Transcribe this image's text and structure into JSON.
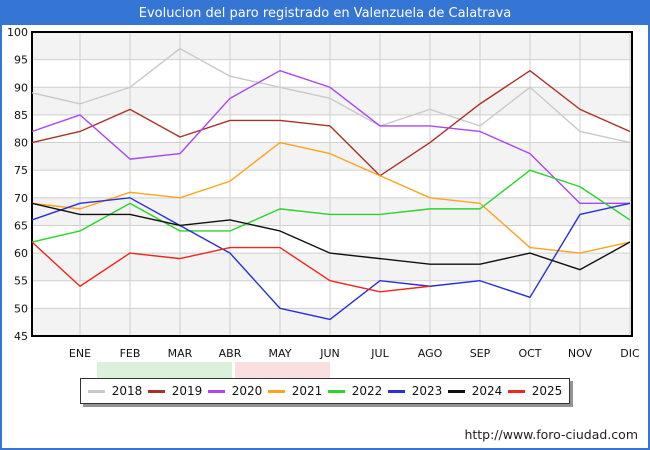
{
  "title": "Evolucion del paro registrado en Valenzuela de Calatrava",
  "footer": {
    "url": "http://www.foro-ciudad.com"
  },
  "colors": {
    "frame_blue": "#3575d3",
    "grid": "#cfcfcf",
    "band": "#f3f3f3",
    "plot_border": "#000000",
    "axis_text": "#111111"
  },
  "chart_data": {
    "type": "line",
    "title": "Evolucion del paro registrado en Valenzuela de Calatrava",
    "xlabel": "",
    "ylabel": "",
    "ylim": [
      45,
      100
    ],
    "ytick_step": 5,
    "grid": true,
    "legend_position": "bottom",
    "months": [
      "ENE",
      "FEB",
      "MAR",
      "ABR",
      "MAY",
      "JUN",
      "JUL",
      "AGO",
      "SEP",
      "OCT",
      "NOV",
      "DIC"
    ],
    "x_layout": {
      "first_point_on_axis": true
    },
    "series": [
      {
        "name": "2018",
        "color": "#c9c9c9",
        "values": [
          89,
          87,
          90,
          97,
          92,
          90,
          88,
          83,
          86,
          83,
          90,
          82,
          80
        ]
      },
      {
        "name": "2019",
        "color": "#a93226",
        "values": [
          80,
          82,
          86,
          81,
          84,
          84,
          83,
          74,
          80,
          87,
          93,
          86,
          82
        ]
      },
      {
        "name": "2020",
        "color": "#aa46f0",
        "values": [
          82,
          85,
          77,
          78,
          88,
          93,
          90,
          83,
          83,
          82,
          78,
          69,
          69
        ]
      },
      {
        "name": "2021",
        "color": "#ffa21f",
        "values": [
          69,
          68,
          71,
          70,
          73,
          80,
          78,
          74,
          70,
          69,
          61,
          60,
          62
        ]
      },
      {
        "name": "2022",
        "color": "#2ad42a",
        "values": [
          62,
          64,
          69,
          64,
          64,
          68,
          67,
          67,
          68,
          68,
          75,
          72,
          66
        ]
      },
      {
        "name": "2023",
        "color": "#2730d9",
        "values": [
          66,
          69,
          70,
          65,
          60,
          50,
          48,
          55,
          54,
          55,
          52,
          67,
          69
        ]
      },
      {
        "name": "2024",
        "color": "#111111",
        "values": [
          69,
          67,
          67,
          65,
          66,
          64,
          60,
          59,
          58,
          58,
          60,
          57,
          62
        ]
      },
      {
        "name": "2025",
        "color": "#ef261b",
        "values": [
          62,
          54,
          60,
          59,
          61,
          61,
          55,
          53,
          54,
          null,
          null,
          null,
          null
        ]
      }
    ]
  }
}
